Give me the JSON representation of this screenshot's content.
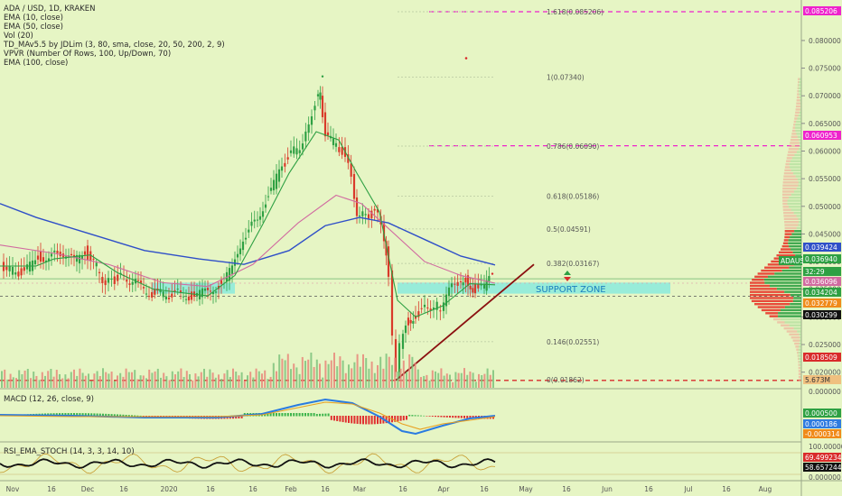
{
  "legend": {
    "title": "ADA / USD, 1D, KRAKEN",
    "lines": [
      "EMA (10, close)",
      "EMA (50, close)",
      "Vol (20)",
      "TD_MAv5.5 by JDLim (3, 80, sma, close, 20, 50, 200, 2, 9)",
      "VPVR (Number Of Rows, 100, Up/Down, 70)",
      "EMA (100, close)"
    ]
  },
  "macd_label": "MACD (12, 26, close, 9)",
  "rsi_label": "RSI_EMA_STOCH (14, 3, 3, 14, 10)",
  "support_zone_label": "SUPPORT ZONE",
  "colors": {
    "bull": "#2ea043",
    "bear": "#d93a2a",
    "ema_blue": "#2f4fc8",
    "ema_pink": "#d16aa0",
    "magenta": "#ee22cc",
    "red_line": "#d92b2b",
    "trend": "#8b1010",
    "zone": "#7ee8e0"
  },
  "price_axis_ticks": [
    "0.080000",
    "0.075000",
    "0.070000",
    "0.065000",
    "0.060000",
    "0.055000",
    "0.050000",
    "0.045000",
    "0.040000",
    "0.035000",
    "0.030000",
    "0.025000",
    "0.020000"
  ],
  "macd_axis_ticks": [
    "0.000500",
    "0.000186",
    "-0.000314"
  ],
  "rsi_axis_ticks": [
    "100.00000",
    "69.499234",
    "58.657244",
    "0.000000"
  ],
  "time_axis": [
    "16",
    "Nov",
    "16",
    "Dec",
    "16",
    "2020",
    "16",
    "Feb",
    "16",
    "Mar",
    "16",
    "Apr",
    "16",
    "May",
    "16",
    "Jun",
    "16",
    "Jul",
    "16",
    "Aug"
  ],
  "price_tags": [
    {
      "text": "0.085206",
      "bg": "#ee22cc",
      "fg": "#ffffff"
    },
    {
      "text": "0.060953",
      "bg": "#ee22cc",
      "fg": "#ffffff"
    },
    {
      "text": "0.039424",
      "bg": "#2f4fc8",
      "fg": "#ffffff"
    },
    {
      "text": "ADAUSD",
      "bg": "#2ea043",
      "fg": "#ffffff"
    },
    {
      "text": "0.036940",
      "bg": "#2ea043",
      "fg": "#ffffff"
    },
    {
      "text": "32:29",
      "bg": "#2ea043",
      "fg": "#ffffff"
    },
    {
      "text": "0.036096",
      "bg": "#d16aa0",
      "fg": "#ffffff"
    },
    {
      "text": "0.034204",
      "bg": "#2ea043",
      "fg": "#ffffff"
    },
    {
      "text": "0.032779",
      "bg": "#f08a1a",
      "fg": "#ffffff"
    },
    {
      "text": "0.030299",
      "bg": "#111111",
      "fg": "#ffffff"
    },
    {
      "text": "0.018509",
      "bg": "#d92b2b",
      "fg": "#ffffff"
    },
    {
      "text": "5.673M",
      "bg": "#f0c080",
      "fg": "#333333"
    }
  ],
  "fib_levels": [
    {
      "text": "1.618(0.085206)"
    },
    {
      "text": "1(0.07340)"
    },
    {
      "text": "0.786(0.06090)"
    },
    {
      "text": "0.618(0.05186)"
    },
    {
      "text": "0.5(0.04591)"
    },
    {
      "text": "0.382(0.03167)"
    },
    {
      "text": "0.146(0.02551)"
    },
    {
      "text": "0(0.01862)"
    }
  ],
  "chart_data": {
    "type": "candlestick",
    "symbol": "ADA / USD, 1D, KRAKEN",
    "ylim": [
      0.0175,
      0.087
    ],
    "x": [
      "Oct 16",
      "Nov",
      "Nov 16",
      "Dec",
      "Dec 16",
      "2020",
      "Jan 16",
      "Feb",
      "Feb 16",
      "Mar",
      "Mar 16",
      "Apr",
      "Apr 16"
    ],
    "close": [
      0.0395,
      0.041,
      0.0395,
      0.0355,
      0.033,
      0.034,
      0.045,
      0.06,
      0.064,
      0.049,
      0.03,
      0.0355,
      0.0369
    ],
    "ema100_end": 0.039424,
    "ema50_end": 0.036096,
    "support_zone": [
      0.0342,
      0.0362
    ],
    "horizontal_levels": [
      0.085206,
      0.060953,
      0.018509
    ],
    "trendline": [
      [
        "Mar 13",
        0.0185
      ],
      [
        "Apr 24",
        0.0408
      ]
    ]
  }
}
